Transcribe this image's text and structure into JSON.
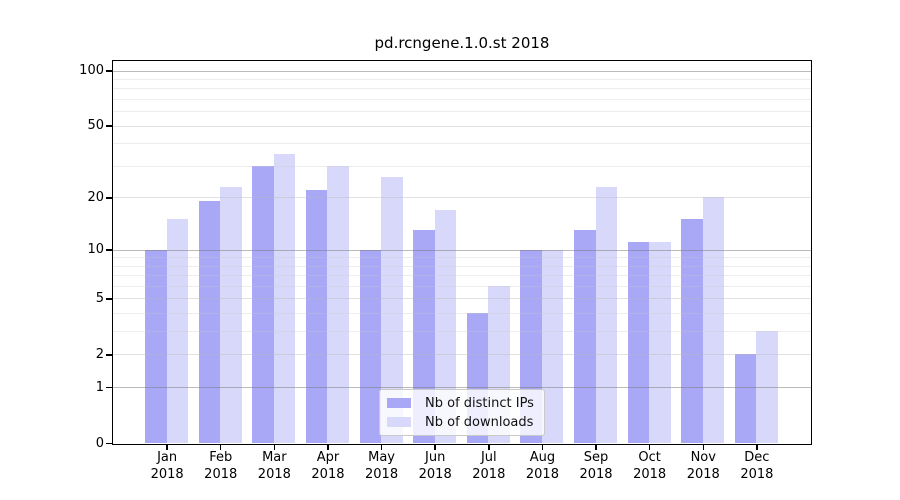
{
  "title": "pd.rcngene.1.0.st 2018",
  "chart_data": {
    "type": "bar",
    "title": "pd.rcngene.1.0.st 2018",
    "categories": [
      "Jan",
      "Feb",
      "Mar",
      "Apr",
      "May",
      "Jun",
      "Jul",
      "Aug",
      "Sep",
      "Oct",
      "Nov",
      "Dec"
    ],
    "year_label": "2018",
    "series": [
      {
        "name": "Nb of distinct IPs",
        "color": "#a8a8f7",
        "values": [
          10,
          19,
          30,
          22,
          10,
          13,
          4,
          10,
          13,
          11,
          15,
          2
        ]
      },
      {
        "name": "Nb of downloads",
        "color": "#d8d8fa",
        "values": [
          15,
          23,
          35,
          30,
          26,
          17,
          6,
          10,
          23,
          11,
          20,
          3
        ]
      }
    ],
    "yscale": "log1p",
    "ylim": [
      0,
      113
    ],
    "yticks": [
      0,
      1,
      2,
      5,
      10,
      20,
      50,
      100
    ],
    "major_gridlines": [
      1,
      10,
      100
    ],
    "mid_gridlines": [
      2,
      5,
      20,
      50
    ],
    "minor_gridlines": [
      3,
      4,
      6,
      7,
      8,
      9,
      30,
      40,
      60,
      70,
      80,
      90
    ],
    "grid": true,
    "legend_position": "lower-center",
    "xlabel": "",
    "ylabel": ""
  }
}
